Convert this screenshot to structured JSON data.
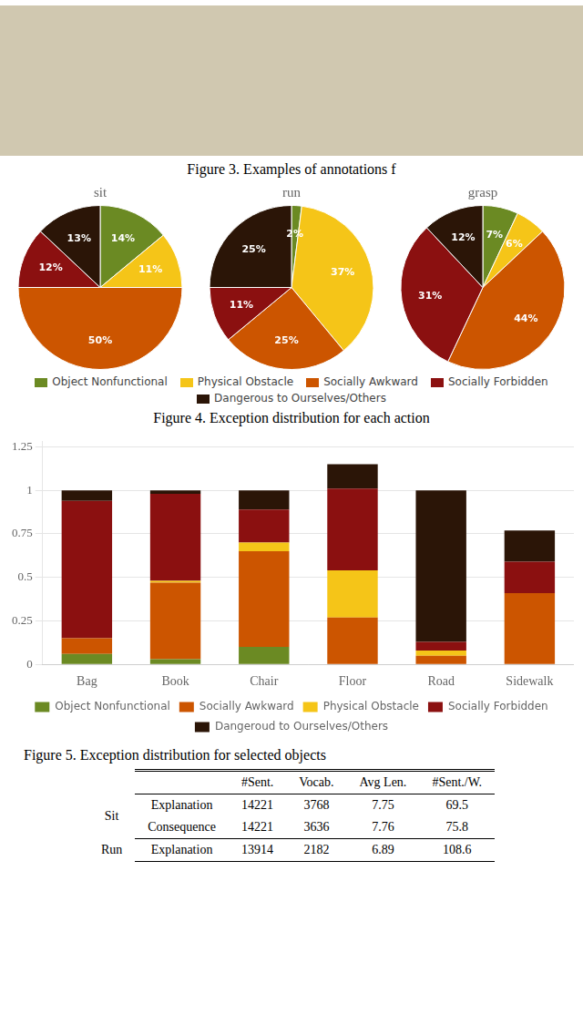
{
  "chart_data": [
    {
      "type": "text",
      "annotations": [
        "Figure 3. Examples of annotations f",
        "Figure 4. Exception distribution for each action",
        "Figure 5. Exception distribution for selected objects"
      ]
    },
    {
      "type": "pie",
      "title": "sit",
      "categories": [
        "Object Nonfunctional",
        "Physical Obstacle",
        "Socially Awkward",
        "Socially Forbidden",
        "Dangerous to Ourselves/Others"
      ],
      "values": [
        14,
        11,
        50,
        12,
        13
      ],
      "value_labels": [
        "14%",
        "11%",
        "50%",
        "12%",
        "13%"
      ],
      "colors": [
        "#6b8a23",
        "#f5c518",
        "#cc5500",
        "#8b1010",
        "#2b1507"
      ],
      "data_labels": true,
      "legend": "bottom"
    },
    {
      "type": "pie",
      "title": "run",
      "categories": [
        "Object Nonfunctional",
        "Physical Obstacle",
        "Socially Awkward",
        "Socially Forbidden",
        "Dangerous to Ourselves/Others"
      ],
      "values": [
        2,
        37,
        25,
        11,
        25
      ],
      "value_labels": [
        "2%",
        "37%",
        "25%",
        "11%",
        "25%"
      ],
      "colors": [
        "#6b8a23",
        "#f5c518",
        "#cc5500",
        "#8b1010",
        "#2b1507"
      ],
      "data_labels": true,
      "legend": "bottom"
    },
    {
      "type": "pie",
      "title": "grasp",
      "categories": [
        "Object Nonfunctional",
        "Physical Obstacle",
        "Socially Awkward",
        "Socially Forbidden",
        "Dangerous to Ourselves/Others"
      ],
      "values": [
        7,
        6,
        44,
        31,
        12
      ],
      "value_labels": [
        "7%",
        "6%",
        "44%",
        "31%",
        "12%"
      ],
      "colors": [
        "#6b8a23",
        "#f5c518",
        "#cc5500",
        "#8b1010",
        "#2b1507"
      ],
      "data_labels": true,
      "legend": "bottom"
    },
    {
      "type": "bar",
      "stacked": true,
      "categories": [
        "Bag",
        "Book",
        "Chair",
        "Floor",
        "Road",
        "Sidewalk"
      ],
      "series": [
        {
          "name": "Object Nonfunctional",
          "color": "#6b8a23",
          "values": [
            0.06,
            0.03,
            0.1,
            0.0,
            0.0,
            0.0
          ]
        },
        {
          "name": "Socially Awkward",
          "color": "#cc5500",
          "values": [
            0.09,
            0.44,
            0.55,
            0.27,
            0.05,
            0.41
          ]
        },
        {
          "name": "Physical Obstacle",
          "color": "#f5c518",
          "values": [
            0.0,
            0.01,
            0.05,
            0.27,
            0.03,
            0.0
          ]
        },
        {
          "name": "Socially Forbidden",
          "color": "#8b1010",
          "values": [
            0.79,
            0.5,
            0.19,
            0.47,
            0.05,
            0.18
          ]
        },
        {
          "name": "Dangeroud to Ourselves/Others",
          "color": "#2b1507",
          "values": [
            0.06,
            0.02,
            0.11,
            0.14,
            0.87,
            0.18
          ]
        }
      ],
      "ylim": [
        0,
        1.28
      ],
      "yticks": [
        0,
        0.25,
        0.5,
        0.75,
        1,
        1.25
      ],
      "grid": true,
      "legend": "bottom"
    },
    {
      "type": "table",
      "columns": [
        "#Sent.",
        "Vocab.",
        "Avg Len.",
        "#Sent./W."
      ],
      "groups": [
        {
          "name": "Sit",
          "rows": [
            {
              "name": "Explanation",
              "values": [
                14221,
                3768,
                7.75,
                69.5
              ]
            },
            {
              "name": "Consequence",
              "values": [
                14221,
                3636,
                7.76,
                75.8
              ]
            }
          ]
        },
        {
          "name": "Run",
          "rows": [
            {
              "name": "Explanation",
              "values": [
                13914,
                2182,
                6.89,
                108.6
              ]
            }
          ]
        }
      ]
    }
  ]
}
